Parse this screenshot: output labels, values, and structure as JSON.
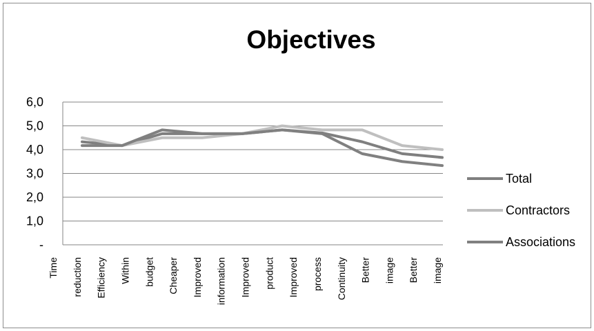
{
  "chart_data": {
    "type": "line",
    "title": "Objectives",
    "xlabel": "",
    "ylabel": "",
    "ylim": [
      0,
      6
    ],
    "yticks": [
      "-",
      "1,0",
      "2,0",
      "3,0",
      "4,0",
      "5,0",
      "6,0"
    ],
    "grid": true,
    "legend_position": "right",
    "category_labels": [
      "Time",
      "reduction",
      "Efficiency",
      "Within",
      "budget",
      "Cheaper",
      "Improved",
      "information",
      "Improved",
      "product",
      "Improved",
      "process",
      "Continuity",
      "Better",
      "image",
      "Better",
      "image"
    ],
    "categories": [
      "Time reduction",
      "Efficiency",
      "Within budget",
      "Cheaper",
      "Improved information",
      "Improved product",
      "Improved process",
      "Continuity",
      "Better image",
      "Better image"
    ],
    "series": [
      {
        "name": "Total",
        "color": "#7f7f7f",
        "values": [
          4.33,
          4.17,
          4.67,
          4.67,
          4.67,
          4.83,
          4.7,
          4.33,
          3.83,
          3.67
        ]
      },
      {
        "name": "Contractors",
        "color": "#bfbfbf",
        "values": [
          4.5,
          4.17,
          4.5,
          4.5,
          4.67,
          5.0,
          4.83,
          4.83,
          4.17,
          4.0
        ]
      },
      {
        "name": "Associations",
        "color": "#808080",
        "values": [
          4.17,
          4.17,
          4.83,
          4.67,
          4.67,
          4.83,
          4.67,
          3.83,
          3.5,
          3.33
        ]
      }
    ]
  }
}
